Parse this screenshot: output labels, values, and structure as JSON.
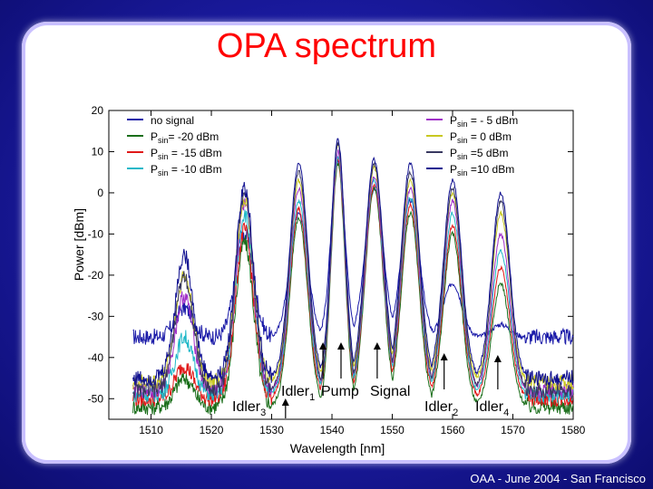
{
  "slide": {
    "title": "OPA spectrum",
    "footer": "OAA - June 2004 - San Francisco"
  },
  "chart_data": {
    "type": "line",
    "title": "OPA spectrum",
    "xlabel": "Wavelength [nm]",
    "ylabel": "Power [dBm]",
    "xlim": [
      1503,
      1580
    ],
    "ylim": [
      -55,
      20
    ],
    "xticks": [
      1510,
      1520,
      1530,
      1540,
      1550,
      1560,
      1570,
      1580
    ],
    "yticks": [
      20,
      10,
      0,
      -10,
      -20,
      -30,
      -40,
      -50
    ],
    "grid": false,
    "legend_position": "top",
    "legend": [
      {
        "sub": "",
        "label": "no signal",
        "color": "#1a1aa8"
      },
      {
        "sub": "sin",
        "label": "P= -20 dBm",
        "color": "#1a6e1a"
      },
      {
        "sub": "sin",
        "label": "P = -15 dBm",
        "color": "#e01818"
      },
      {
        "sub": "sin",
        "label": "P = -10 dBm",
        "color": "#20b8c8"
      },
      {
        "sub": "sin",
        "label": "P = - 5 dBm",
        "color": "#a030c8"
      },
      {
        "sub": "sin",
        "label": "P = 0 dBm",
        "color": "#c8c820"
      },
      {
        "sub": "sin",
        "label": "P =5 dBm",
        "color": "#383860"
      },
      {
        "sub": "sin",
        "label": "P =10 dBm",
        "color": "#101090"
      }
    ],
    "series": [
      {
        "name": "no signal",
        "color": "#1a1aa8",
        "peaks": [
          -28,
          -10,
          -5,
          8,
          1,
          -2,
          -22,
          -32
        ],
        "floor": -35
      },
      {
        "name": "-20 dBm",
        "color": "#1a6e1a",
        "peaks": [
          -45,
          -12,
          -6,
          7,
          1,
          -5,
          -10,
          -22
        ],
        "floor": -52
      },
      {
        "name": "-15 dBm",
        "color": "#e01818",
        "peaks": [
          -42,
          -9,
          -4,
          8,
          2,
          -3,
          -8,
          -18
        ],
        "floor": -50
      },
      {
        "name": "-10 dBm",
        "color": "#20b8c8",
        "peaks": [
          -35,
          -5,
          -2,
          9,
          3,
          -1,
          -5,
          -14
        ],
        "floor": -49
      },
      {
        "name": "-5 dBm",
        "color": "#a030c8",
        "peaks": [
          -25,
          -3,
          1,
          10,
          4,
          1,
          -2,
          -10
        ],
        "floor": -48
      },
      {
        "name": "0 dBm",
        "color": "#c8c820",
        "peaks": [
          -20,
          -1,
          3,
          12,
          6,
          3,
          0,
          -5
        ],
        "floor": -46
      },
      {
        "name": "5 dBm",
        "color": "#383860",
        "peaks": [
          -20,
          0,
          5,
          12,
          7,
          5,
          1,
          -2
        ],
        "floor": -48
      },
      {
        "name": "10 dBm",
        "color": "#101090",
        "peaks": [
          -15,
          1,
          7,
          13,
          8,
          7,
          3,
          0
        ],
        "floor": -45
      }
    ],
    "peak_wavelengths": [
      1515.5,
      1525.5,
      1534.5,
      1541,
      1547,
      1553,
      1560,
      1568
    ],
    "annotations": [
      {
        "label": "Idler",
        "sub": "3",
        "x": 1532.3
      },
      {
        "label": "Idler",
        "sub": "1",
        "x": 1538.5
      },
      {
        "label": "Pump",
        "sub": "",
        "x": 1541.5
      },
      {
        "label": "Signal",
        "sub": "",
        "x": 1547.5
      },
      {
        "label": "Idler",
        "sub": "2",
        "x": 1558.6
      },
      {
        "label": "Idler",
        "sub": "4",
        "x": 1567.5
      }
    ]
  }
}
